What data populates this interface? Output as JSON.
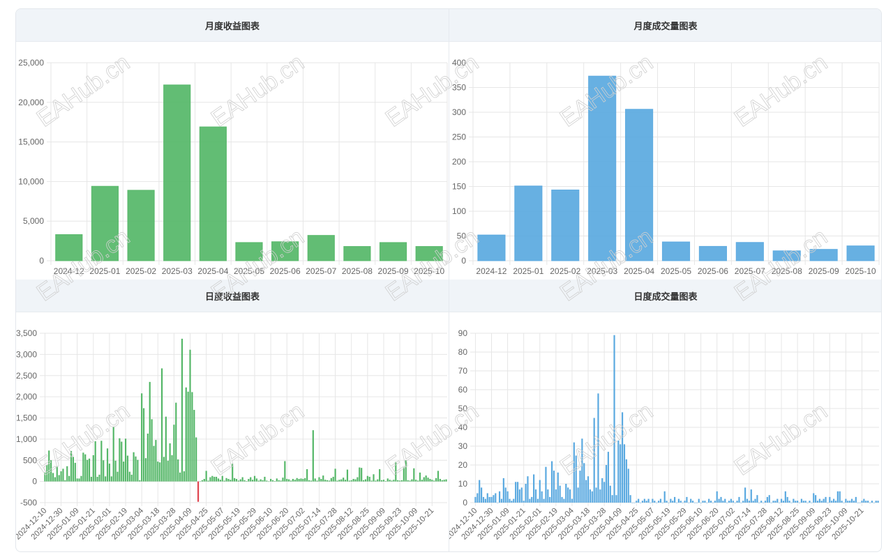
{
  "watermark": "EAHub.cn",
  "chart_data": [
    {
      "id": "monthly_revenue",
      "type": "bar",
      "title": "月度收益图表",
      "color": "#55b768",
      "neg_color": "#e0454f",
      "categories": [
        "2024-12",
        "2025-01",
        "2025-02",
        "2025-03",
        "2025-04",
        "2025-05",
        "2025-06",
        "2025-07",
        "2025-08",
        "2025-09",
        "2025-10"
      ],
      "values": [
        3300,
        9400,
        8900,
        22200,
        16900,
        2300,
        2400,
        3200,
        1800,
        2300,
        1800
      ],
      "ylim": [
        0,
        25000
      ],
      "yticks": [
        "0",
        "5,000",
        "10,000",
        "15,000",
        "20,000",
        "25,000"
      ],
      "grid": true
    },
    {
      "id": "monthly_volume",
      "type": "bar",
      "title": "月度成交量图表",
      "color": "#5aa9e0",
      "categories": [
        "2024-12",
        "2025-01",
        "2025-02",
        "2025-03",
        "2025-04",
        "2025-05",
        "2025-06",
        "2025-07",
        "2025-08",
        "2025-09",
        "2025-10"
      ],
      "values": [
        52,
        151,
        143,
        373,
        306,
        38,
        29,
        37,
        20,
        23,
        30
      ],
      "ylim": [
        0,
        400
      ],
      "yticks": [
        "0",
        "50",
        "100",
        "150",
        "200",
        "250",
        "300",
        "350",
        "400"
      ],
      "grid": true
    },
    {
      "id": "daily_revenue",
      "type": "bar",
      "title": "日度收益图表",
      "color": "#55b768",
      "neg_color": "#e0454f",
      "tick_every": 8,
      "tick_labels": [
        "2024-12-10",
        "2024-12-30",
        "2025-01-09",
        "2025-01-21",
        "2025-02-01",
        "2025-02-19",
        "2025-03-04",
        "2025-03-18",
        "2025-03-28",
        "2025-04-09",
        "2025-04-25",
        "2025-05-07",
        "2025-05-19",
        "2025-05-29",
        "2025-06-10",
        "2025-06-20",
        "2025-07-02",
        "2025-07-14",
        "2025-07-28",
        "2025-08-12",
        "2025-08-25",
        "2025-09-09",
        "2025-09-23",
        "2025-10-09",
        "2025-10-21"
      ],
      "values": [
        210,
        390,
        730,
        500,
        200,
        100,
        360,
        150,
        240,
        300,
        30,
        360,
        130,
        720,
        580,
        440,
        70,
        70,
        130,
        680,
        640,
        510,
        540,
        110,
        620,
        950,
        110,
        160,
        960,
        500,
        120,
        780,
        420,
        120,
        1290,
        490,
        230,
        1020,
        940,
        470,
        1010,
        610,
        230,
        160,
        690,
        590,
        510,
        30,
        2080,
        1730,
        550,
        1130,
        2350,
        1470,
        840,
        980,
        470,
        450,
        2670,
        580,
        1530,
        490,
        900,
        620,
        1340,
        1860,
        520,
        210,
        3370,
        240,
        2220,
        2120,
        3110,
        2110,
        1690,
        1040,
        -480,
        0,
        30,
        60,
        250,
        20,
        100,
        130,
        110,
        110,
        70,
        40,
        130,
        20,
        80,
        60,
        40,
        420,
        80,
        60,
        20,
        50,
        100,
        30,
        10,
        60,
        100,
        40,
        130,
        70,
        20,
        50,
        30,
        110,
        20,
        0,
        60,
        30,
        10,
        70,
        30,
        20,
        90,
        480,
        60,
        50,
        20,
        60,
        40,
        80,
        60,
        70,
        60,
        80,
        290,
        30,
        20,
        1210,
        70,
        20,
        100,
        60,
        140,
        40,
        30,
        20,
        80,
        110,
        300,
        20,
        40,
        50,
        90,
        40,
        280,
        20,
        30,
        60,
        50,
        100,
        330,
        320,
        30,
        50,
        130,
        110,
        20,
        170,
        20,
        50,
        290,
        30,
        40,
        10,
        70,
        40,
        20,
        40,
        460,
        30,
        20,
        30,
        330,
        500,
        30,
        20,
        50,
        310,
        40,
        20,
        210,
        40,
        100,
        140,
        90,
        60,
        40,
        20,
        80,
        250,
        60,
        30,
        40,
        50
      ],
      "ylim": [
        -500,
        3500
      ],
      "yticks": [
        "-500",
        "0",
        "500",
        "1,000",
        "1,500",
        "2,000",
        "2,500",
        "3,000",
        "3,500"
      ],
      "grid": true
    },
    {
      "id": "daily_volume",
      "type": "bar",
      "title": "日度成交量图表",
      "color": "#5aa9e0",
      "tick_every": 8,
      "tick_labels": [
        "2024-12-10",
        "2024-12-30",
        "2025-01-09",
        "2025-01-21",
        "2025-02-01",
        "2025-02-19",
        "2025-03-04",
        "2025-03-18",
        "2025-03-28",
        "2025-04-09",
        "2025-04-25",
        "2025-05-07",
        "2025-05-19",
        "2025-05-29",
        "2025-06-10",
        "2025-06-20",
        "2025-07-02",
        "2025-07-14",
        "2025-07-28",
        "2025-08-12",
        "2025-08-25",
        "2025-09-09",
        "2025-09-23",
        "2025-10-09",
        "2025-10-21"
      ],
      "values": [
        3,
        5,
        12,
        8,
        3,
        2,
        5,
        3,
        3,
        4,
        5,
        0,
        6,
        2,
        13,
        8,
        6,
        2,
        1,
        2,
        11,
        11,
        7,
        8,
        1,
        10,
        14,
        2,
        3,
        15,
        7,
        2,
        12,
        6,
        2,
        19,
        7,
        3,
        22,
        17,
        7,
        16,
        9,
        3,
        2,
        10,
        8,
        7,
        2,
        32,
        25,
        8,
        17,
        34,
        21,
        12,
        14,
        7,
        6,
        45,
        8,
        58,
        7,
        13,
        11,
        20,
        27,
        9,
        4,
        89,
        4,
        33,
        31,
        48,
        31,
        23,
        18,
        4,
        0,
        0,
        1,
        2,
        0,
        1,
        2,
        1,
        2,
        0,
        2,
        1,
        0,
        1,
        2,
        0,
        6,
        1,
        0,
        2,
        1,
        3,
        0,
        2,
        1,
        0,
        1,
        3,
        0,
        2,
        1,
        0,
        0,
        2,
        0,
        1,
        1,
        0,
        2,
        1,
        0,
        1,
        6,
        2,
        3,
        1,
        2,
        0,
        1,
        2,
        1,
        0,
        1,
        3,
        0,
        1,
        8,
        2,
        1,
        7,
        1,
        2,
        4,
        0,
        1,
        0,
        1,
        3,
        4,
        0,
        1,
        1,
        2,
        0,
        2,
        1,
        6,
        3,
        1,
        0,
        2,
        1,
        1,
        0,
        2,
        1,
        1,
        0,
        1,
        0,
        5,
        4,
        1,
        2,
        1,
        2,
        3,
        0,
        3,
        1,
        2,
        1,
        6,
        6,
        1,
        0,
        2,
        1,
        1,
        2,
        1,
        3,
        0,
        0,
        1,
        2,
        1,
        1,
        0,
        1,
        0,
        1,
        1
      ],
      "ylim": [
        0,
        90
      ],
      "yticks": [
        "0",
        "10",
        "20",
        "30",
        "40",
        "50",
        "60",
        "70",
        "80",
        "90"
      ],
      "grid": true
    }
  ]
}
